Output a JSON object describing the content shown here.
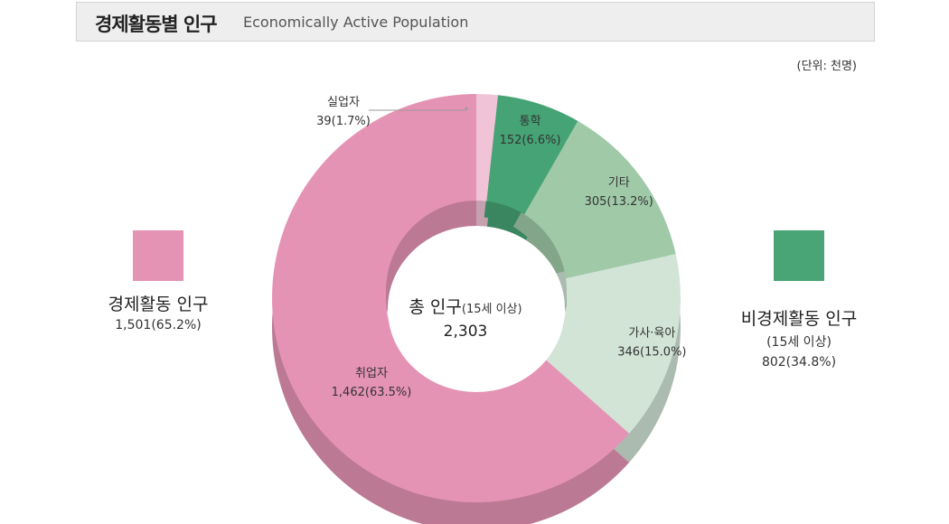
{
  "header": {
    "title_ko": "경제활동별 인구",
    "title_en": "Economically Active Population",
    "unit": "(단위: 천명)"
  },
  "chart_data": {
    "type": "donut",
    "center": {
      "label": "총 인구",
      "sublabel": "(15세 이상)",
      "value": "2,303"
    },
    "segments": [
      {
        "name": "실업자",
        "value": 39,
        "percent": 1.7,
        "label": "39(1.7%)",
        "color": "#f0c4d6"
      },
      {
        "name": "통학",
        "value": 152,
        "percent": 6.6,
        "label": "152(6.6%)",
        "color": "#46a375"
      },
      {
        "name": "기타",
        "value": 305,
        "percent": 13.2,
        "label": "305(13.2%)",
        "color": "#a0c9a8"
      },
      {
        "name": "가사·육아",
        "value": 346,
        "percent": 15.0,
        "label": "346(15.0%)",
        "color": "#d1e4d6"
      },
      {
        "name": "취업자",
        "value": 1462,
        "percent": 63.5,
        "label": "1,462(63.5%)",
        "color": "#e593b4"
      }
    ],
    "groups": [
      {
        "name": "경제활동 인구",
        "value_label": "1,501(65.2%)",
        "color": "#e593b4"
      },
      {
        "name": "비경제활동 인구",
        "sub": "(15세 이상)",
        "value_label": "802(34.8%)",
        "color": "#4aa576"
      }
    ]
  }
}
